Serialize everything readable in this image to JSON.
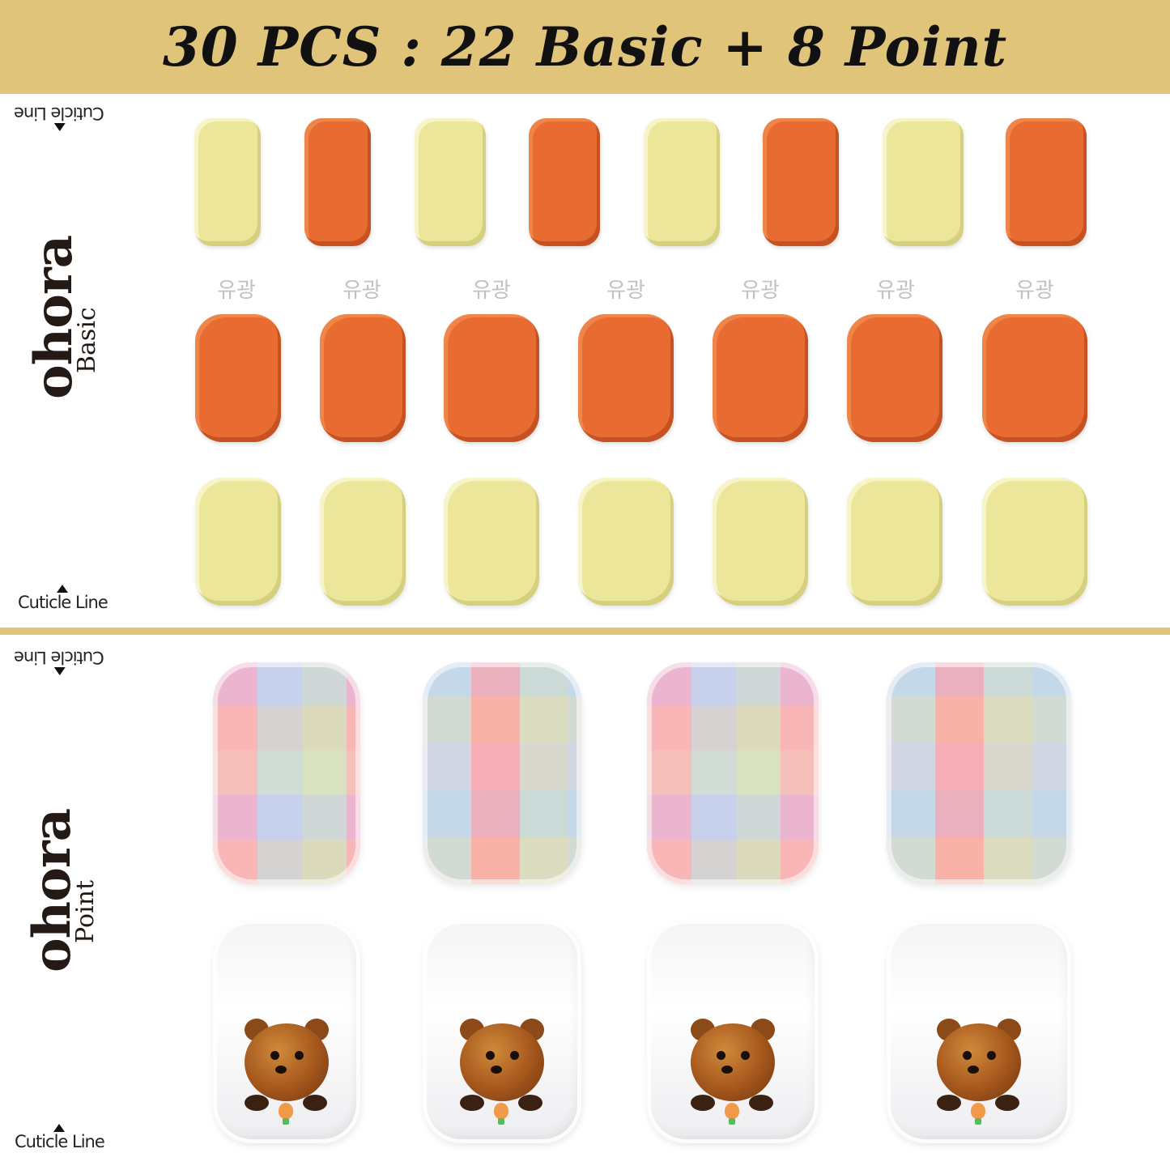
{
  "banner": {
    "title": "30 PCS : 22 Basic + 8 Point"
  },
  "colors": {
    "banner": "#dfc47a",
    "yellow": "#ece69b",
    "orange": "#e86c31",
    "text": "#231a15"
  },
  "basic_panel": {
    "brand": "ohora",
    "subtitle": "Basic",
    "cuticle_top": "Cuticle Line",
    "cuticle_bottom": "Cuticle Line",
    "gloss_label": "유광",
    "row1": [
      "yellow",
      "orange",
      "yellow",
      "orange",
      "yellow",
      "orange",
      "yellow",
      "orange"
    ],
    "row2": [
      "orange",
      "orange",
      "orange",
      "orange",
      "orange",
      "orange",
      "orange"
    ],
    "row3": [
      "yellow",
      "yellow",
      "yellow",
      "yellow",
      "yellow",
      "yellow",
      "yellow"
    ]
  },
  "point_panel": {
    "brand": "ohora",
    "subtitle": "Point",
    "cuticle_top": "Cuticle Line",
    "cuticle_bottom": "Cuticle Line",
    "row1": [
      "plaid-nail",
      "plaid-nail",
      "plaid-nail",
      "plaid-nail"
    ],
    "row2": [
      "bear-charm-nail",
      "bear-charm-nail",
      "bear-charm-nail",
      "bear-charm-nail"
    ]
  }
}
